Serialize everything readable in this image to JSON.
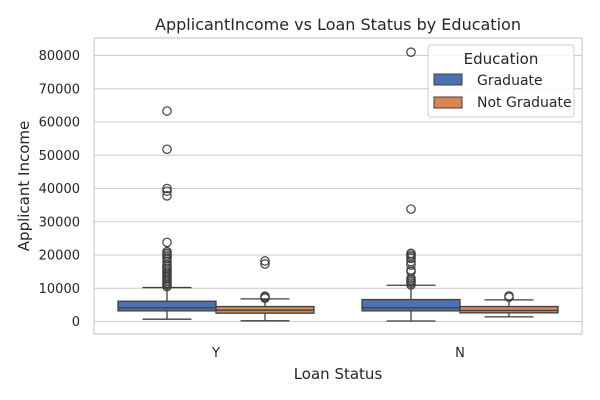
{
  "chart_data": {
    "type": "box",
    "title": "ApplicantIncome vs Loan Status by Education",
    "xlabel": "Loan Status",
    "ylabel": "Applicant Income",
    "categories": [
      "Y",
      "N"
    ],
    "ylim": [
      -3000,
      85000
    ],
    "yticks": [
      0,
      10000,
      20000,
      30000,
      40000,
      50000,
      60000,
      70000,
      80000
    ],
    "grid": true,
    "legend": {
      "title": "Education",
      "position": "top-right"
    },
    "series": [
      {
        "name": "Graduate",
        "color": "#4c72b0",
        "boxes": [
          {
            "category": "Y",
            "whisker_low": 700,
            "q1": 3200,
            "median": 4100,
            "q3": 6100,
            "whisker_high": 10200,
            "outliers": [
              10500,
              11000,
              11500,
              12000,
              12500,
              13000,
              13500,
              14000,
              14500,
              15000,
              15500,
              16000,
              16500,
              17000,
              18000,
              19000,
              19500,
              20000,
              20500,
              21000,
              23800,
              37800,
              39200,
              40000,
              51800,
              63300
            ]
          },
          {
            "category": "N",
            "whisker_low": 150,
            "q1": 3200,
            "median": 4100,
            "q3": 6600,
            "whisker_high": 10900,
            "outliers": [
              11000,
              11500,
              12000,
              12500,
              13000,
              15000,
              15500,
              17000,
              18000,
              19000,
              19500,
              20000,
              20500,
              33800,
              81000
            ]
          }
        ]
      },
      {
        "name": "Not Graduate",
        "color": "#dd8452",
        "boxes": [
          {
            "category": "Y",
            "whisker_low": 200,
            "q1": 2500,
            "median": 3400,
            "q3": 4500,
            "whisker_high": 6800,
            "outliers": [
              7000,
              7400,
              7600,
              17300,
              18200
            ]
          },
          {
            "category": "N",
            "whisker_low": 1400,
            "q1": 2600,
            "median": 3300,
            "q3": 4500,
            "whisker_high": 6500,
            "outliers": [
              7300,
              7700
            ]
          }
        ]
      }
    ]
  }
}
